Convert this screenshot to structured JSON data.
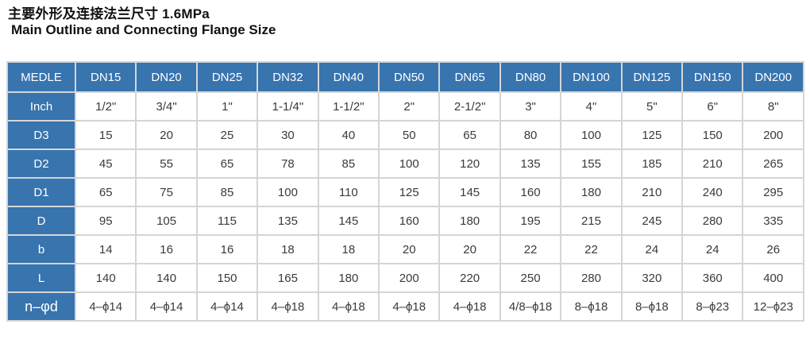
{
  "titles": {
    "cn": "主要外形及连接法兰尺寸 1.6MPa",
    "en": "Main Outline and Connecting Flange Size"
  },
  "colors": {
    "header_blue": "#3874ae",
    "border_gray": "#d3d6d9",
    "cell_text": "#3a3a3a",
    "header_text": "#ffffff",
    "title_text": "#111111"
  },
  "table": {
    "columns": [
      "MEDLE",
      "DN15",
      "DN20",
      "DN25",
      "DN32",
      "DN40",
      "DN50",
      "DN65",
      "DN80",
      "DN100",
      "DN125",
      "DN150",
      "DN200"
    ],
    "rows": [
      {
        "label": "Inch",
        "values": [
          "1/2\"",
          "3/4\"",
          "1\"",
          "1-1/4\"",
          "1-1/2\"",
          "2\"",
          "2-1/2\"",
          "3\"",
          "4\"",
          "5\"",
          "6\"",
          "8\""
        ]
      },
      {
        "label": "D3",
        "values": [
          "15",
          "20",
          "25",
          "30",
          "40",
          "50",
          "65",
          "80",
          "100",
          "125",
          "150",
          "200"
        ]
      },
      {
        "label": "D2",
        "values": [
          "45",
          "55",
          "65",
          "78",
          "85",
          "100",
          "120",
          "135",
          "155",
          "185",
          "210",
          "265"
        ]
      },
      {
        "label": "D1",
        "values": [
          "65",
          "75",
          "85",
          "100",
          "110",
          "125",
          "145",
          "160",
          "180",
          "210",
          "240",
          "295"
        ]
      },
      {
        "label": "D",
        "values": [
          "95",
          "105",
          "115",
          "135",
          "145",
          "160",
          "180",
          "195",
          "215",
          "245",
          "280",
          "335"
        ]
      },
      {
        "label": "b",
        "values": [
          "14",
          "16",
          "16",
          "18",
          "18",
          "20",
          "20",
          "22",
          "22",
          "24",
          "24",
          "26"
        ]
      },
      {
        "label": "L",
        "values": [
          "140",
          "140",
          "150",
          "165",
          "180",
          "200",
          "220",
          "250",
          "280",
          "320",
          "360",
          "400"
        ]
      },
      {
        "label": "n–φd",
        "values": [
          "4–ϕ14",
          "4–ϕ14",
          "4–ϕ14",
          "4–ϕ18",
          "4–ϕ18",
          "4–ϕ18",
          "4–ϕ18",
          "4/8–ϕ18",
          "8–ϕ18",
          "8–ϕ18",
          "8–ϕ23",
          "12–ϕ23"
        ]
      }
    ]
  }
}
